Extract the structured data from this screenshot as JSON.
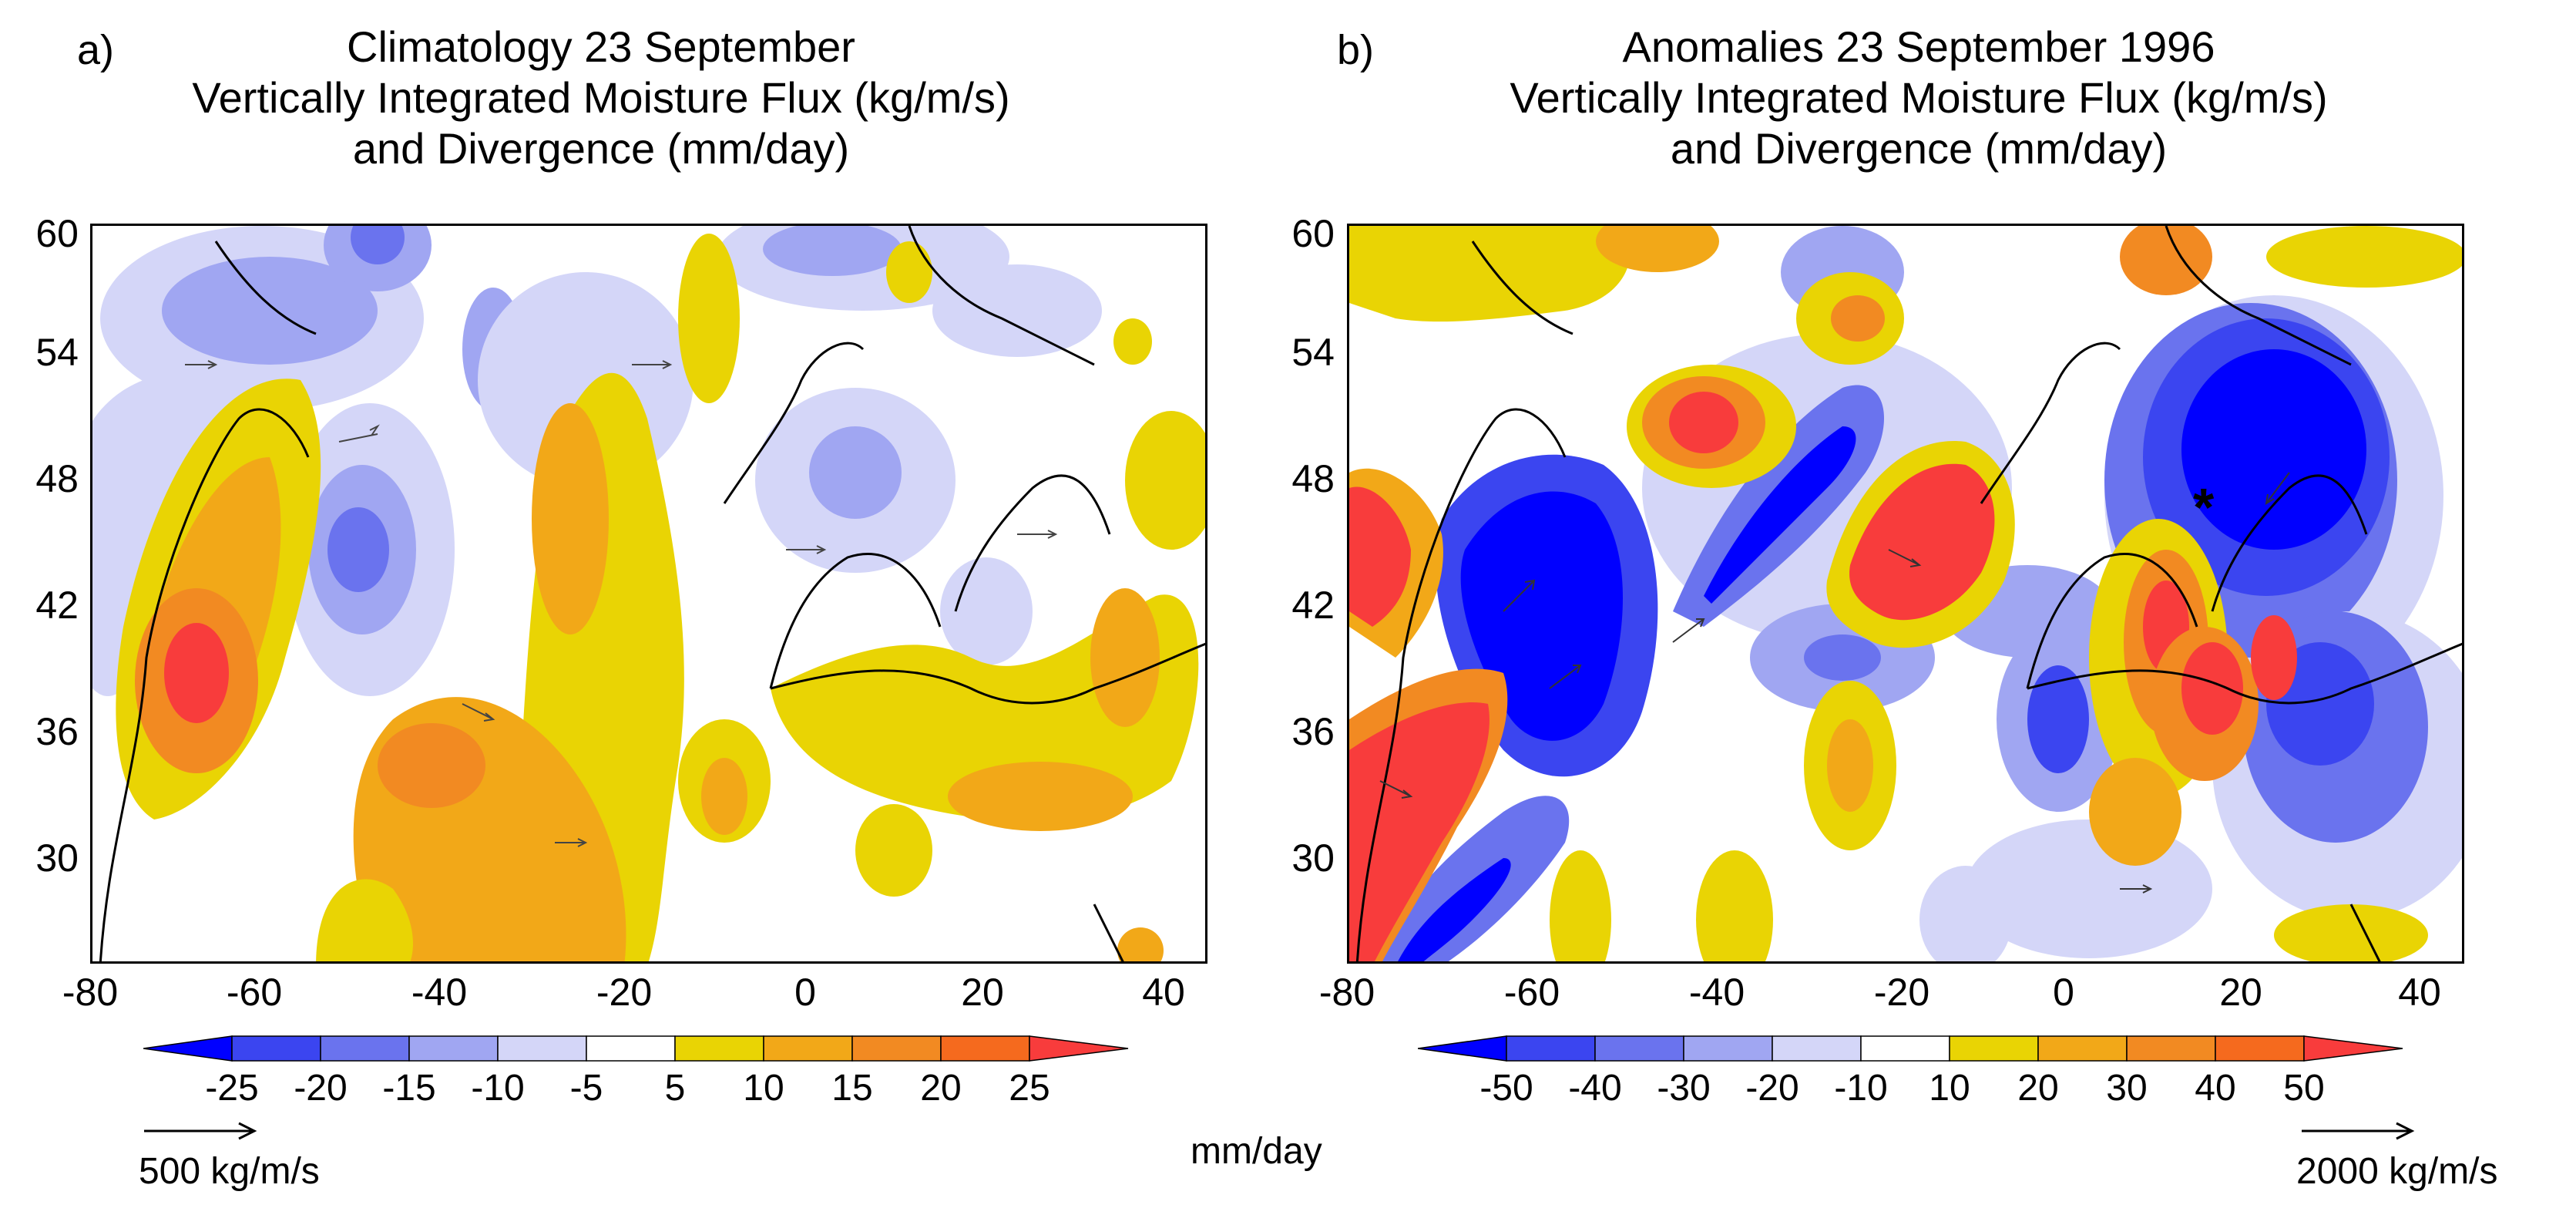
{
  "figure": {
    "units_label": "mm/day",
    "panels": [
      {
        "letter": "a)",
        "title_lines": [
          "Climatology 23 September",
          "Vertically Integrated Moisture Flux (kg/m/s)",
          "and Divergence (mm/day)"
        ],
        "yticks": [
          "60",
          "54",
          "48",
          "42",
          "36",
          "30"
        ],
        "xticks": [
          "-80",
          "-60",
          "-40",
          "-20",
          "0",
          "20",
          "40"
        ],
        "colorbar_labels": [
          "-25",
          "-20",
          "-15",
          "-10",
          "-5",
          "5",
          "10",
          "15",
          "20",
          "25"
        ],
        "ref_vector_label": "500 kg/m/s"
      },
      {
        "letter": "b)",
        "title_lines": [
          "Anomalies 23 September 1996",
          "Vertically Integrated Moisture Flux (kg/m/s)",
          "and Divergence (mm/day)"
        ],
        "yticks": [
          "60",
          "54",
          "48",
          "42",
          "36",
          "30"
        ],
        "xticks": [
          "-80",
          "-60",
          "-40",
          "-20",
          "0",
          "20",
          "40"
        ],
        "colorbar_labels": [
          "-50",
          "-40",
          "-30",
          "-20",
          "-10",
          "10",
          "20",
          "30",
          "40",
          "50"
        ],
        "ref_vector_label": "2000 kg/m/s",
        "marker": "*"
      }
    ],
    "colorbar_colors": [
      "#0000ff",
      "#3b45f0",
      "#6a73ee",
      "#a0a6f2",
      "#d4d6f8",
      "#ffffff",
      "#e9d404",
      "#f2a818",
      "#f28a22",
      "#f56a1e",
      "#f83c3c"
    ]
  },
  "map_extent": {
    "lon_min": -80,
    "lon_max": 45,
    "lat_min": 25,
    "lat_max": 60
  }
}
